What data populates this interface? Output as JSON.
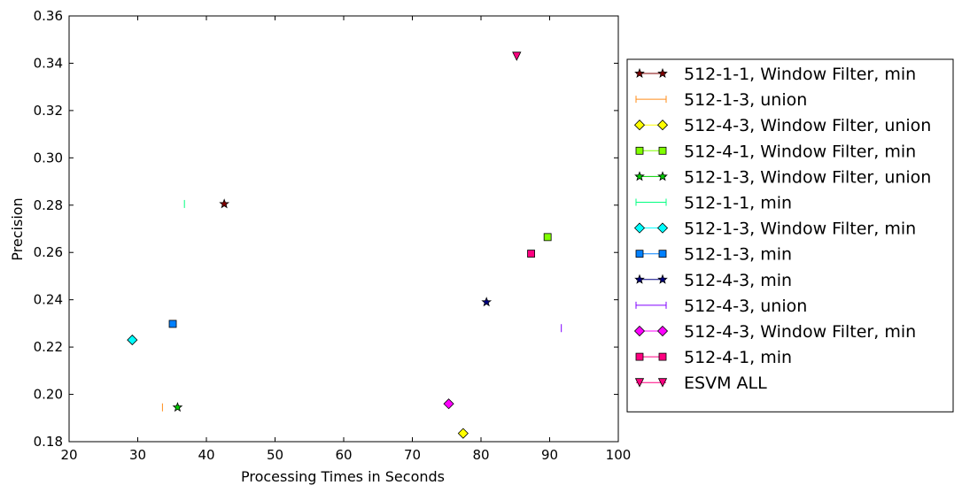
{
  "chart_data": {
    "type": "scatter",
    "title": "",
    "xlabel": "Processing Times in Seconds",
    "ylabel": "Precision",
    "xlim": [
      20,
      100
    ],
    "ylim": [
      0.18,
      0.36
    ],
    "xticks": [
      20,
      30,
      40,
      50,
      60,
      70,
      80,
      90,
      100
    ],
    "yticks": [
      0.18,
      0.2,
      0.22,
      0.24,
      0.26,
      0.28,
      0.3,
      0.32,
      0.34,
      0.36
    ],
    "xtick_labels": [
      "20",
      "30",
      "40",
      "50",
      "60",
      "70",
      "80",
      "90",
      "100"
    ],
    "ytick_labels": [
      "0.18",
      "0.20",
      "0.22",
      "0.24",
      "0.26",
      "0.28",
      "0.30",
      "0.32",
      "0.34",
      "0.36"
    ],
    "grid": false,
    "legend_position": "outside-right",
    "series": [
      {
        "name": "512-1-1, Window Filter, min",
        "marker": "star",
        "color": "#800000",
        "x": 42.6,
        "y": 0.2805
      },
      {
        "name": "512-1-3, union",
        "marker": "vline",
        "color": "#ff8c1a",
        "x": 33.6,
        "y": 0.1945
      },
      {
        "name": "512-4-3, Window Filter, union",
        "marker": "diamond",
        "color": "#ffff00",
        "x": 77.4,
        "y": 0.1835
      },
      {
        "name": "512-4-1, Window Filter, min",
        "marker": "square",
        "color": "#80ff00",
        "x": 89.7,
        "y": 0.2665
      },
      {
        "name": "512-1-3, Window Filter, union",
        "marker": "star",
        "color": "#00d000",
        "x": 35.8,
        "y": 0.1945
      },
      {
        "name": "512-1-1, min",
        "marker": "vline",
        "color": "#00ff80",
        "x": 36.8,
        "y": 0.2805
      },
      {
        "name": "512-1-3, Window Filter, min",
        "marker": "diamond",
        "color": "#00ffff",
        "x": 29.2,
        "y": 0.223
      },
      {
        "name": "512-1-3, min",
        "marker": "square",
        "color": "#0080ff",
        "x": 35.1,
        "y": 0.2298
      },
      {
        "name": "512-4-3, min",
        "marker": "star",
        "color": "#000080",
        "x": 80.8,
        "y": 0.239
      },
      {
        "name": "512-4-3, union",
        "marker": "vline",
        "color": "#8000ff",
        "x": 91.7,
        "y": 0.228
      },
      {
        "name": "512-4-3, Window Filter, min",
        "marker": "diamond",
        "color": "#ff00ff",
        "x": 75.3,
        "y": 0.196
      },
      {
        "name": "512-4-1, min",
        "marker": "square",
        "color": "#ff0080",
        "x": 87.3,
        "y": 0.2595
      },
      {
        "name": "ESVM ALL",
        "marker": "triangle-down",
        "color": "#ff0080",
        "x": 85.2,
        "y": 0.343
      }
    ]
  }
}
